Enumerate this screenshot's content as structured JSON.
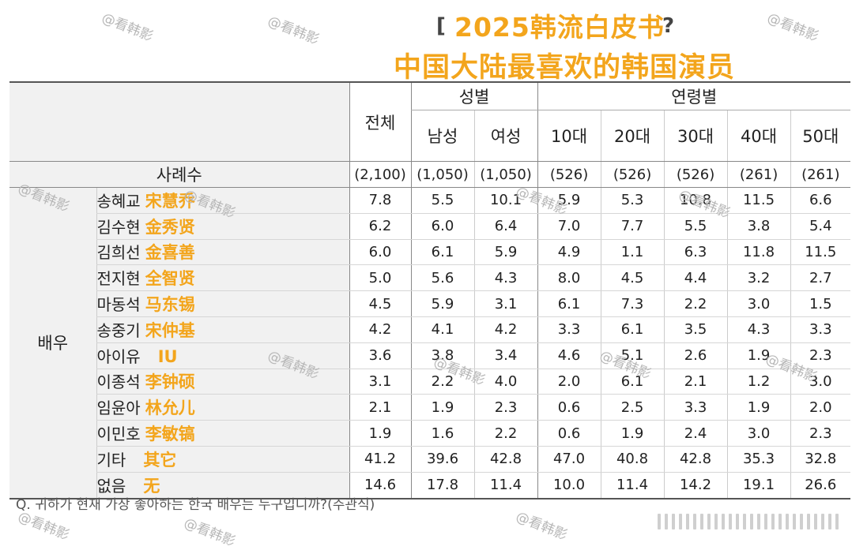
{
  "title": {
    "bracket_left": "[",
    "line1": "2025韩流白皮书",
    "bracket_right": "?",
    "line2": "中国大陆最喜欢的韩国演员"
  },
  "watermark_text": "@看韩影",
  "header": {
    "total": "전체",
    "gender_group": "성별",
    "age_group": "연령별",
    "subcolumns": [
      "남성",
      "여성",
      "10대",
      "20대",
      "30대",
      "40대",
      "50대"
    ]
  },
  "sample": {
    "label": "사례수",
    "values": [
      "(2,100)",
      "(1,050)",
      "(1,050)",
      "(526)",
      "(526)",
      "(526)",
      "(261)",
      "(261)"
    ]
  },
  "category_label": "배우",
  "rows": [
    {
      "kr": "송혜교",
      "cn": "宋慧乔",
      "values": [
        "7.8",
        "5.5",
        "10.1",
        "5.9",
        "5.3",
        "10.8",
        "11.5",
        "6.6"
      ]
    },
    {
      "kr": "김수현",
      "cn": "金秀贤",
      "values": [
        "6.2",
        "6.0",
        "6.4",
        "7.0",
        "7.7",
        "5.5",
        "3.8",
        "5.4"
      ]
    },
    {
      "kr": "김희선",
      "cn": "金喜善",
      "values": [
        "6.0",
        "6.1",
        "5.9",
        "4.9",
        "1.1",
        "6.3",
        "11.8",
        "11.5"
      ]
    },
    {
      "kr": "전지현",
      "cn": "全智贤",
      "values": [
        "5.0",
        "5.6",
        "4.3",
        "8.0",
        "4.5",
        "4.4",
        "3.2",
        "2.7"
      ]
    },
    {
      "kr": "마동석",
      "cn": "马东锡",
      "values": [
        "4.5",
        "5.9",
        "3.1",
        "6.1",
        "7.3",
        "2.2",
        "3.0",
        "1.5"
      ]
    },
    {
      "kr": "송중기",
      "cn": "宋仲基",
      "values": [
        "4.2",
        "4.1",
        "4.2",
        "3.3",
        "6.1",
        "3.5",
        "4.3",
        "3.3"
      ]
    },
    {
      "kr": "아이유",
      "cn": "IU",
      "values": [
        "3.6",
        "3.8",
        "3.4",
        "4.6",
        "5.1",
        "2.6",
        "1.9",
        "2.3"
      ]
    },
    {
      "kr": "이종석",
      "cn": "李钟硕",
      "values": [
        "3.1",
        "2.2",
        "4.0",
        "2.0",
        "6.1",
        "2.1",
        "1.2",
        "3.0"
      ]
    },
    {
      "kr": "임윤아",
      "cn": "林允儿",
      "values": [
        "2.1",
        "1.9",
        "2.3",
        "0.6",
        "2.5",
        "3.3",
        "1.9",
        "2.0"
      ]
    },
    {
      "kr": "이민호",
      "cn": "李敏镐",
      "values": [
        "1.9",
        "1.6",
        "2.2",
        "0.6",
        "1.9",
        "2.4",
        "3.0",
        "2.3"
      ]
    },
    {
      "kr": "기타",
      "cn": "其它",
      "values": [
        "41.2",
        "39.6",
        "42.8",
        "47.0",
        "40.8",
        "42.8",
        "35.3",
        "32.8"
      ]
    },
    {
      "kr": "없음",
      "cn": "无",
      "values": [
        "14.6",
        "17.8",
        "11.4",
        "10.0",
        "11.4",
        "14.2",
        "19.1",
        "26.6"
      ]
    }
  ],
  "footnote": "Q. 귀하가 현재 가장 좋아하는 한국 배우는 누구입니까?(주관식)",
  "colors": {
    "accent": "#f3a51c",
    "header_bg": "#f1f1f1"
  }
}
